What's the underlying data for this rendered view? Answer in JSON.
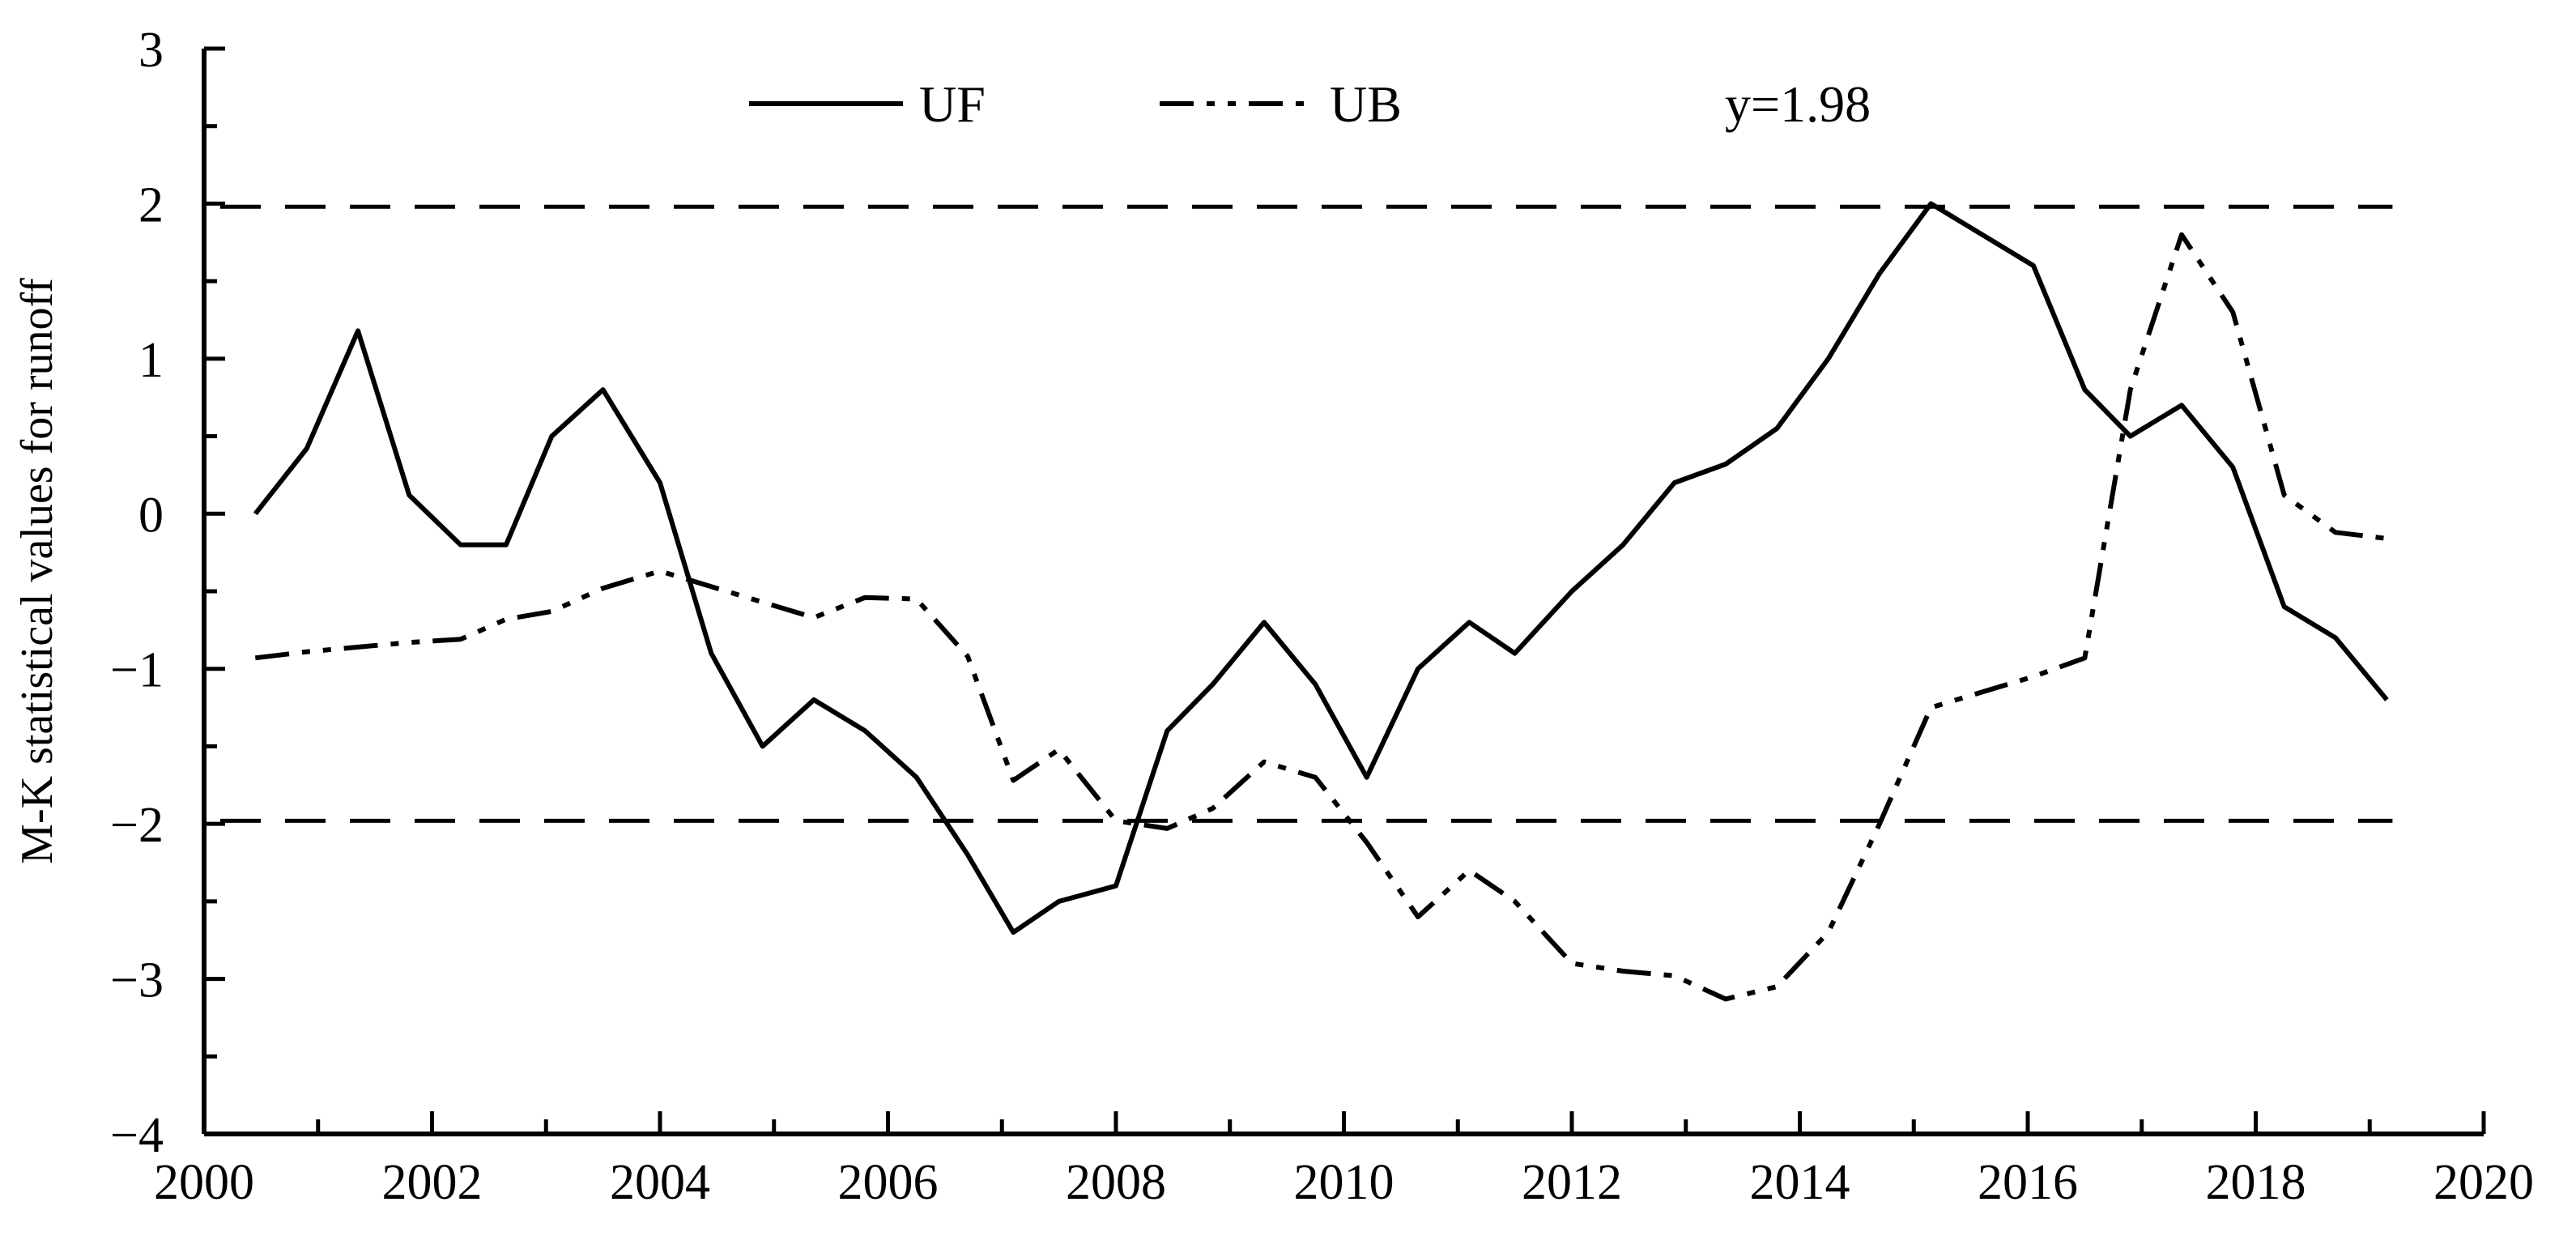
{
  "chart_data": {
    "type": "line",
    "title": "",
    "xlabel": "",
    "ylabel": "M-K statistical values for runoff",
    "xlim": [
      2000,
      2020
    ],
    "ylim": [
      -4,
      3
    ],
    "x_ticks": [
      2000,
      2002,
      2004,
      2006,
      2008,
      2010,
      2012,
      2014,
      2016,
      2018,
      2020
    ],
    "x_tick_labels": [
      "2000",
      "2002",
      "2004",
      "2006",
      "2008",
      "2010",
      "2012",
      "2014",
      "2016",
      "2018",
      "2020"
    ],
    "y_ticks": [
      -4,
      -3,
      -2,
      -1,
      0,
      1,
      2,
      3
    ],
    "y_tick_labels": [
      "−4",
      "−3",
      "−2",
      "−1",
      "0",
      "1",
      "2",
      "3"
    ],
    "legend_position": "top",
    "grid": false,
    "legend": [
      {
        "label": "UF",
        "style": "solid"
      },
      {
        "label": "UB",
        "style": "dash-dot-dot"
      },
      {
        "label": "y=1.98",
        "style": "dashed"
      }
    ],
    "series": [
      {
        "name": "UF",
        "style": "solid",
        "x": [
          2000.45,
          2000.9,
          2001.35,
          2001.8,
          2002.25,
          2002.65,
          2003.05,
          2003.5,
          2004.0,
          2004.45,
          2004.9,
          2005.35,
          2005.8,
          2006.25,
          2006.7,
          2007.1,
          2007.5,
          2008.0,
          2008.45,
          2008.85,
          2009.3,
          2009.75,
          2010.2,
          2010.65,
          2011.1,
          2011.5,
          2012.0,
          2012.45,
          2012.9,
          2013.35,
          2013.8,
          2014.25,
          2014.7,
          2015.15,
          2015.6,
          2016.05,
          2016.5,
          2016.9,
          2017.35,
          2017.8,
          2018.25,
          2018.7,
          2019.15
        ],
        "y": [
          0.0,
          0.42,
          1.18,
          0.12,
          -0.2,
          -0.2,
          0.5,
          0.8,
          0.2,
          -0.9,
          -1.5,
          -1.2,
          -1.4,
          -1.7,
          -2.2,
          -2.7,
          -2.5,
          -2.4,
          -1.4,
          -1.1,
          -0.7,
          -1.1,
          -1.7,
          -1.0,
          -0.7,
          -0.9,
          -0.5,
          -0.2,
          0.2,
          0.32,
          0.55,
          1.0,
          1.55,
          2.0,
          1.8,
          1.6,
          0.8,
          0.5,
          0.7,
          0.3,
          -0.6,
          -0.8,
          -1.2
        ]
      },
      {
        "name": "UB",
        "style": "dash-dot-dot",
        "x": [
          2000.45,
          2000.9,
          2001.35,
          2001.8,
          2002.25,
          2002.65,
          2003.05,
          2003.5,
          2004.0,
          2004.45,
          2004.9,
          2005.35,
          2005.8,
          2006.25,
          2006.7,
          2007.1,
          2007.5,
          2008.0,
          2008.45,
          2008.85,
          2009.3,
          2009.75,
          2010.2,
          2010.65,
          2011.1,
          2011.5,
          2012.0,
          2012.45,
          2012.9,
          2013.35,
          2013.8,
          2014.25,
          2014.7,
          2015.15,
          2015.6,
          2016.05,
          2016.5,
          2016.9,
          2017.35,
          2017.8,
          2018.25,
          2018.7,
          2019.15
        ],
        "y": [
          -0.93,
          -0.89,
          -0.86,
          -0.83,
          -0.81,
          -0.68,
          -0.63,
          -0.48,
          -0.37,
          -0.47,
          -0.57,
          -0.67,
          -0.54,
          -0.55,
          -0.92,
          -1.72,
          -1.52,
          -1.98,
          -2.03,
          -1.9,
          -1.6,
          -1.7,
          -2.12,
          -2.6,
          -2.3,
          -2.5,
          -2.9,
          -2.95,
          -2.98,
          -3.13,
          -3.05,
          -2.7,
          -2.0,
          -1.25,
          -1.15,
          -1.05,
          -0.93,
          0.8,
          1.8,
          1.3,
          0.12,
          -0.12,
          -0.16
        ]
      }
    ],
    "reference_lines": [
      {
        "y": 1.98,
        "style": "dashed"
      },
      {
        "y": -1.98,
        "style": "dashed"
      }
    ]
  }
}
